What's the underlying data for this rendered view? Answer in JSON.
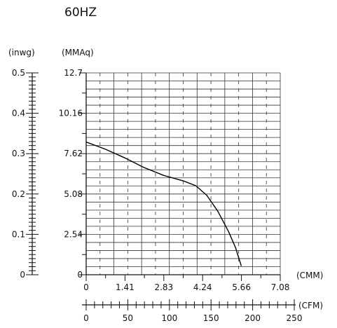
{
  "chart_data": {
    "type": "line",
    "title": "60HZ",
    "left_axes": [
      {
        "unit_label": "(inwg)",
        "ticks": [
          "0",
          "0.1",
          "0.2",
          "0.3",
          "0.4",
          "0.5"
        ],
        "range": [
          0,
          0.5
        ]
      },
      {
        "unit_label": "(MMAq)",
        "ticks": [
          "0",
          "2.54",
          "5.08",
          "7.62",
          "10.16",
          "12.7"
        ],
        "range": [
          0,
          12.7
        ]
      }
    ],
    "bottom_axes": [
      {
        "unit_label": "(CMM)",
        "ticks": [
          "0",
          "1.41",
          "2.83",
          "4.24",
          "5.66",
          "7.08"
        ],
        "range": [
          0,
          7.08
        ]
      },
      {
        "unit_label": "(CFM)",
        "ticks": [
          "0",
          "50",
          "100",
          "150",
          "200",
          "250"
        ],
        "range": [
          0,
          250
        ]
      }
    ],
    "grid": true,
    "series": [
      {
        "x": [
          0,
          0.7,
          1.41,
          2.1,
          2.83,
          3.55,
          4.0,
          4.4,
          4.8,
          5.2,
          5.45,
          5.66
        ],
        "y": [
          8.35,
          7.9,
          7.35,
          6.75,
          6.25,
          5.9,
          5.6,
          5.0,
          4.0,
          2.7,
          1.7,
          0.55
        ]
      }
    ]
  }
}
